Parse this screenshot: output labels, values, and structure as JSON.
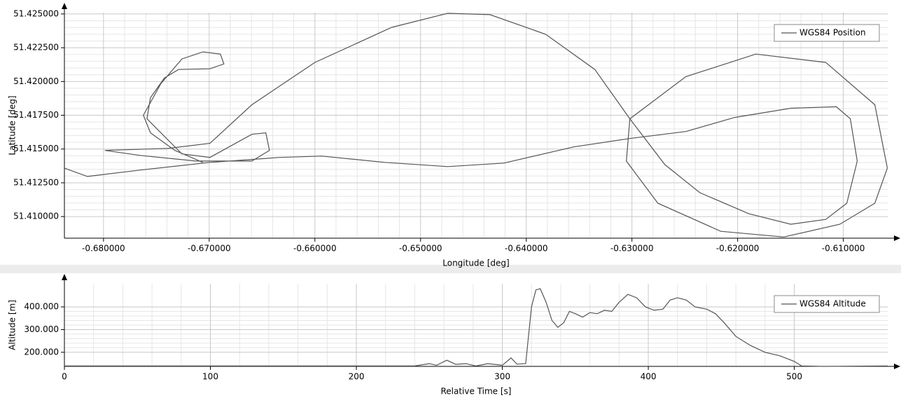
{
  "chart_data": [
    {
      "type": "line",
      "xlabel": "Longitude [deg]",
      "ylabel": "Latitude [deg]",
      "grid": true,
      "legend": "upper right",
      "xlim": [
        -0.6837,
        -0.6058
      ],
      "ylim": [
        51.4084,
        51.4251
      ],
      "xticks": [
        {
          "value": -0.68,
          "label": "-0.680000"
        },
        {
          "value": -0.67,
          "label": "-0.670000"
        },
        {
          "value": -0.66,
          "label": "-0.660000"
        },
        {
          "value": -0.65,
          "label": "-0.650000"
        },
        {
          "value": -0.64,
          "label": "-0.640000"
        },
        {
          "value": -0.63,
          "label": "-0.630000"
        },
        {
          "value": -0.62,
          "label": "-0.620000"
        },
        {
          "value": -0.61,
          "label": "-0.610000"
        }
      ],
      "yticks": [
        {
          "value": 51.41,
          "label": "51.410000"
        },
        {
          "value": 51.4125,
          "label": "51.412500"
        },
        {
          "value": 51.415,
          "label": "51.415000"
        },
        {
          "value": 51.4175,
          "label": "51.417500"
        },
        {
          "value": 51.42,
          "label": "51.420000"
        },
        {
          "value": 51.4225,
          "label": "51.422500"
        },
        {
          "value": 51.425,
          "label": "51.425000"
        }
      ],
      "series": [
        {
          "name": "WGS84 Position",
          "color": "#555555",
          "x": [
            -0.68371,
            -0.68152,
            -0.67656,
            -0.66993,
            -0.66331,
            -0.65934,
            -0.65338,
            -0.64742,
            -0.64212,
            -0.6355,
            -0.6302,
            -0.6249,
            -0.62026,
            -0.61497,
            -0.61066,
            -0.60934,
            -0.60868,
            -0.60967,
            -0.61166,
            -0.61497,
            -0.61894,
            -0.62358,
            -0.62689,
            -0.6302,
            -0.63351,
            -0.63815,
            -0.64344,
            -0.64742,
            -0.65272,
            -0.66,
            -0.66596,
            -0.66993,
            -0.67391,
            -0.67987,
            -0.67656,
            -0.67126,
            -0.66596,
            -0.6643,
            -0.66464,
            -0.66596,
            -0.66993,
            -0.67258,
            -0.67457,
            -0.67589,
            -0.67556,
            -0.67424,
            -0.67291,
            -0.66993,
            -0.66861,
            -0.66894,
            -0.6706,
            -0.67258,
            -0.67457,
            -0.67623,
            -0.67556,
            -0.67325,
            -0.6706,
            null,
            -0.60583,
            -0.60702,
            -0.61166,
            -0.61828,
            -0.6249,
            -0.6302,
            -0.63053,
            -0.62755,
            -0.62159,
            -0.61563,
            -0.61033,
            -0.60702,
            -0.60583
          ],
          "values": [
            51.41359,
            51.41297,
            51.41344,
            51.41401,
            51.41438,
            51.41448,
            51.41401,
            51.4137,
            51.41396,
            51.41516,
            51.41578,
            51.4163,
            51.41734,
            51.41802,
            51.41813,
            51.41724,
            51.41411,
            51.41099,
            51.40979,
            51.40943,
            51.41021,
            51.41177,
            51.41385,
            51.41724,
            51.42089,
            51.42349,
            51.42495,
            51.42505,
            51.42401,
            51.42141,
            51.41828,
            51.41542,
            51.41505,
            51.4149,
            51.41453,
            51.41411,
            51.41411,
            51.4149,
            51.4162,
            51.41609,
            51.41438,
            51.41464,
            51.4162,
            51.41724,
            51.4188,
            51.42026,
            51.42089,
            51.42094,
            51.4213,
            51.42203,
            51.42219,
            51.42167,
            51.41984,
            51.4175,
            51.4162,
            51.4149,
            51.41401,
            null,
            51.41359,
            51.41828,
            51.42141,
            51.42203,
            51.42036,
            51.41724,
            51.41411,
            51.41099,
            51.40891,
            51.40849,
            51.40943,
            51.41099,
            51.41359
          ]
        }
      ]
    },
    {
      "type": "line",
      "xlabel": "Relative Time [s]",
      "ylabel": "Altitude [m]",
      "grid": true,
      "legend": "upper right",
      "xlim": [
        0,
        564
      ],
      "ylim": [
        138,
        502
      ],
      "xticks": [
        0,
        100,
        200,
        300,
        400,
        500
      ],
      "yticks": [
        {
          "value": 200,
          "label": "200.000"
        },
        {
          "value": 300,
          "label": "300.000"
        },
        {
          "value": 400,
          "label": "400.000"
        }
      ],
      "series": [
        {
          "name": "WGS84 Altitude",
          "color": "#555555",
          "x": [
            0,
            240,
            250,
            255,
            262,
            268,
            275,
            282,
            290,
            300,
            306,
            310,
            316,
            320,
            323,
            326,
            330,
            334,
            338,
            342,
            346,
            350,
            355,
            360,
            365,
            370,
            375,
            380,
            386,
            392,
            398,
            404,
            410,
            415,
            420,
            426,
            432,
            440,
            446,
            452,
            460,
            470,
            480,
            490,
            500,
            505,
            520,
            564
          ],
          "values": [
            140,
            140,
            150,
            143,
            165,
            147,
            150,
            140,
            150,
            143,
            175,
            148,
            150,
            400,
            475,
            480,
            420,
            340,
            310,
            330,
            380,
            370,
            355,
            375,
            370,
            385,
            380,
            420,
            455,
            440,
            400,
            385,
            390,
            430,
            440,
            430,
            400,
            390,
            370,
            330,
            270,
            230,
            200,
            185,
            160,
            140,
            138,
            140
          ]
        }
      ]
    }
  ]
}
